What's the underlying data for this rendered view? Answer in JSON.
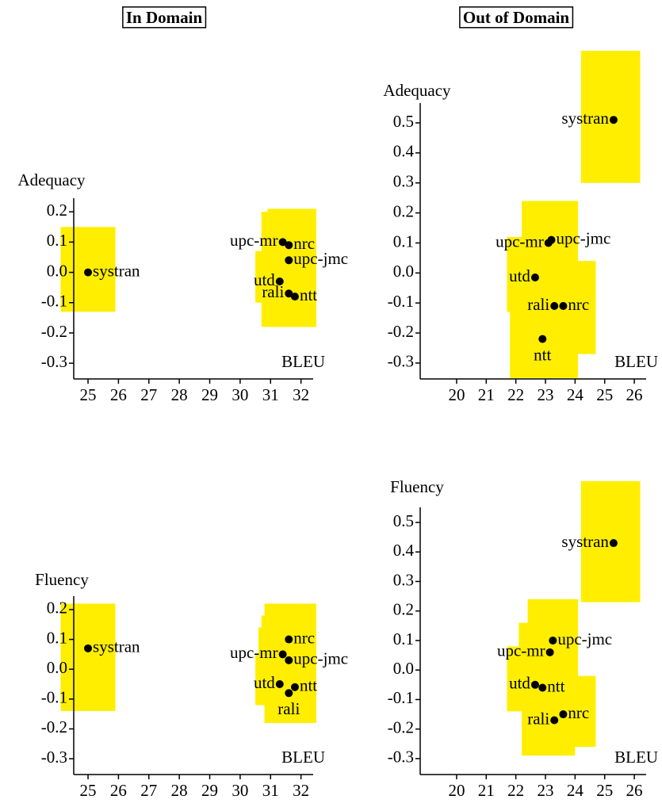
{
  "column_titles": [
    "In Domain",
    "Out of Domain"
  ],
  "chart_data": [
    {
      "type": "scatter",
      "ylabel": "Adequacy",
      "xlabel": "BLEU",
      "color": "#ffee00",
      "labels": [
        "systran",
        "upc-mr",
        "nrc",
        "upc-jmc",
        "utd",
        "rali",
        "ntt"
      ],
      "x": [
        25.0,
        31.4,
        31.6,
        31.6,
        31.3,
        31.6,
        31.8
      ],
      "values": [
        0.0,
        0.1,
        0.09,
        0.04,
        -0.03,
        -0.07,
        -0.08
      ],
      "x_ranges": [
        [
          24.1,
          25.9
        ],
        [
          30.7,
          32.3
        ],
        [
          30.9,
          32.5
        ],
        [
          30.8,
          32.4
        ],
        [
          30.5,
          32.0
        ],
        [
          30.8,
          32.4
        ],
        [
          31.0,
          32.5
        ]
      ],
      "y_ranges": [
        [
          -0.13,
          0.15
        ],
        [
          -0.18,
          0.2
        ],
        [
          -0.18,
          0.21
        ],
        [
          -0.12,
          0.19
        ],
        [
          -0.1,
          0.07
        ],
        [
          -0.17,
          0.03
        ],
        [
          -0.18,
          0.02
        ]
      ],
      "xlim": [
        24.53,
        32.4
      ],
      "ylim": [
        -0.352,
        0.245
      ],
      "xticks": [
        25,
        26,
        27,
        28,
        29,
        30,
        31,
        32
      ],
      "yticks": [
        -0.3,
        -0.2,
        -0.1,
        {
          "value": 0,
          "label": "0.0"
        },
        0.1,
        0.2
      ]
    },
    {
      "type": "scatter",
      "ylabel": "Adequacy",
      "xlabel": "BLEU",
      "color": "#ffee00",
      "labels": [
        "systran",
        "upc-mr",
        "upc-jmc",
        "utd",
        "rali",
        "nrc",
        "ntt"
      ],
      "x": [
        25.3,
        23.1,
        23.2,
        22.65,
        23.3,
        23.6,
        22.9
      ],
      "values": [
        0.51,
        0.1,
        0.11,
        -0.015,
        -0.11,
        -0.11,
        -0.22
      ],
      "x_ranges": [
        [
          24.2,
          26.2
        ],
        [
          22.2,
          24.1
        ],
        [
          22.3,
          24.1
        ],
        [
          21.7,
          23.5
        ],
        [
          22.4,
          24.7
        ],
        [
          22.9,
          24.7
        ],
        [
          21.8,
          24.1
        ]
      ],
      "y_ranges": [
        [
          0.3,
          0.74
        ],
        [
          -0.13,
          0.24
        ],
        [
          0.0,
          0.24
        ],
        [
          -0.13,
          0.12
        ],
        [
          -0.27,
          0.04
        ],
        [
          -0.27,
          0.03
        ],
        [
          -0.35,
          -0.08
        ]
      ],
      "xlim": [
        18.77,
        26.4
      ],
      "ylim": [
        -0.353,
        0.566
      ],
      "xticks": [
        20,
        21,
        22,
        23,
        24,
        25,
        26
      ],
      "yticks": [
        -0.3,
        -0.2,
        -0.1,
        {
          "value": 0,
          "label": "0.0"
        },
        0.1,
        0.2,
        0.3,
        0.4,
        0.5
      ]
    },
    {
      "type": "scatter",
      "ylabel": "Fluency",
      "xlabel": "BLEU",
      "color": "#ffee00",
      "labels": [
        "systran",
        "nrc",
        "upc-mr",
        "upc-jmc",
        "utd",
        "ntt",
        "rali"
      ],
      "x": [
        25.0,
        31.6,
        31.4,
        31.6,
        31.3,
        31.8,
        31.6
      ],
      "values": [
        0.07,
        0.1,
        0.05,
        0.03,
        -0.05,
        -0.06,
        -0.08
      ],
      "x_ranges": [
        [
          24.1,
          25.9
        ],
        [
          30.8,
          32.5
        ],
        [
          30.6,
          32.2
        ],
        [
          30.7,
          32.4
        ],
        [
          30.5,
          32.0
        ],
        [
          30.9,
          32.5
        ],
        [
          30.8,
          32.4
        ]
      ],
      "y_ranges": [
        [
          -0.14,
          0.22
        ],
        [
          -0.18,
          0.22
        ],
        [
          -0.12,
          0.14
        ],
        [
          -0.1,
          0.18
        ],
        [
          -0.12,
          0.05
        ],
        [
          -0.18,
          0.02
        ],
        [
          -0.18,
          -0.01
        ]
      ],
      "xlim": [
        24.53,
        32.4
      ],
      "ylim": [
        -0.353,
        0.245
      ],
      "xticks": [
        25,
        26,
        27,
        28,
        29,
        30,
        31,
        32
      ],
      "yticks": [
        -0.3,
        -0.2,
        -0.1,
        {
          "value": 0,
          "label": "0.0"
        },
        0.1,
        0.2
      ]
    },
    {
      "type": "scatter",
      "ylabel": "Fluency",
      "xlabel": "BLEU",
      "color": "#ffee00",
      "labels": [
        "systran",
        "upc-jmc",
        "upc-mr",
        "utd",
        "ntt",
        "rali",
        "nrc"
      ],
      "x": [
        25.3,
        23.25,
        23.15,
        22.65,
        22.9,
        23.3,
        23.6
      ],
      "values": [
        0.43,
        0.1,
        0.06,
        -0.05,
        -0.06,
        -0.17,
        -0.15
      ],
      "x_ranges": [
        [
          24.2,
          26.2
        ],
        [
          22.4,
          24.1
        ],
        [
          22.1,
          23.9
        ],
        [
          21.7,
          23.5
        ],
        [
          22.3,
          24.0
        ],
        [
          22.2,
          24.0
        ],
        [
          23.0,
          24.7
        ]
      ],
      "y_ranges": [
        [
          0.23,
          0.64
        ],
        [
          -0.07,
          0.24
        ],
        [
          -0.1,
          0.16
        ],
        [
          -0.14,
          0.08
        ],
        [
          -0.14,
          0.06
        ],
        [
          -0.29,
          -0.02
        ],
        [
          -0.26,
          -0.02
        ]
      ],
      "xlim": [
        18.77,
        26.4
      ],
      "ylim": [
        -0.354,
        0.551
      ],
      "xticks": [
        20,
        21,
        22,
        23,
        24,
        25,
        26
      ],
      "yticks": [
        -0.3,
        -0.2,
        -0.1,
        {
          "value": 0,
          "label": "0.0"
        },
        0.1,
        0.2,
        0.3,
        0.4,
        0.5
      ]
    }
  ]
}
